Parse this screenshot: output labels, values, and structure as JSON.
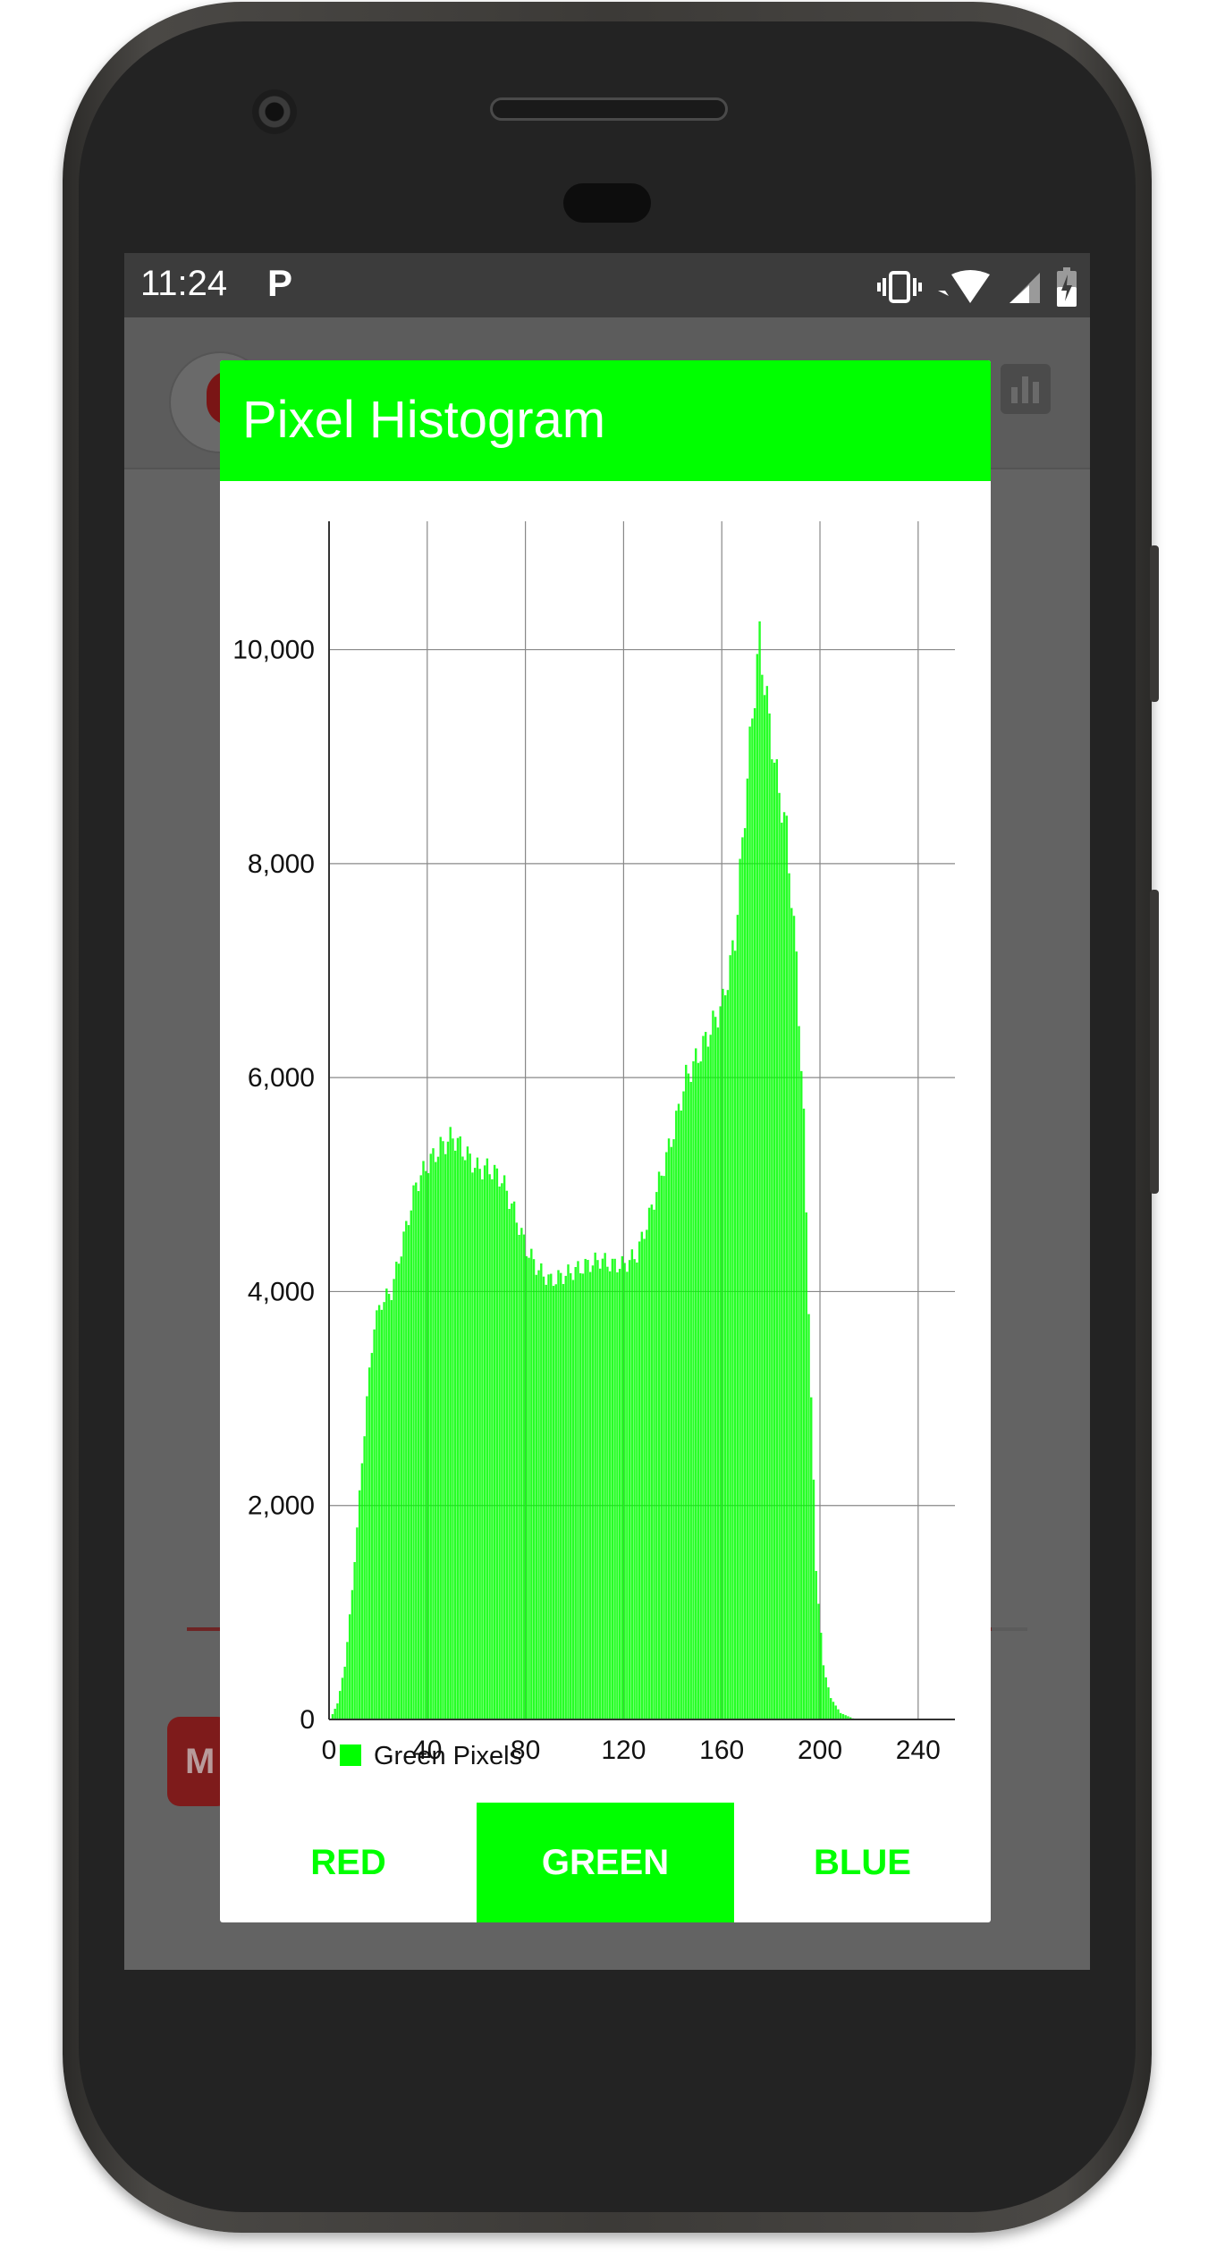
{
  "status_bar": {
    "time": "11:24",
    "app_letter": "P"
  },
  "dialog": {
    "title": "Pixel Histogram",
    "accent_color": "#00ff00",
    "tabs": [
      {
        "label": "RED",
        "selected": false
      },
      {
        "label": "GREEN",
        "selected": true
      },
      {
        "label": "BLUE",
        "selected": false
      }
    ]
  },
  "background": {
    "button_letter": "M"
  },
  "chart_data": {
    "type": "bar",
    "xlim": [
      0,
      255
    ],
    "ylim": [
      0,
      11200
    ],
    "x_ticks": [
      0,
      40,
      80,
      120,
      160,
      200,
      240
    ],
    "y_ticks": [
      0,
      2000,
      4000,
      6000,
      8000,
      10000
    ],
    "y_tick_labels": [
      "0",
      "2,000",
      "4,000",
      "6,000",
      "8,000",
      "10,000"
    ],
    "grid": true,
    "legend_position": "bottom-left",
    "series": [
      {
        "name": "Green Pixels",
        "color": "#00ff00",
        "anchors": [
          [
            0,
            0
          ],
          [
            3,
            150
          ],
          [
            6,
            500
          ],
          [
            9,
            1200
          ],
          [
            12,
            2100
          ],
          [
            15,
            3000
          ],
          [
            18,
            3700
          ],
          [
            21,
            3900
          ],
          [
            25,
            4000
          ],
          [
            30,
            4500
          ],
          [
            35,
            5000
          ],
          [
            40,
            5200
          ],
          [
            45,
            5350
          ],
          [
            50,
            5450
          ],
          [
            55,
            5300
          ],
          [
            60,
            5150
          ],
          [
            65,
            5150
          ],
          [
            70,
            5050
          ],
          [
            75,
            4750
          ],
          [
            80,
            4400
          ],
          [
            85,
            4200
          ],
          [
            90,
            4100
          ],
          [
            95,
            4150
          ],
          [
            100,
            4200
          ],
          [
            105,
            4250
          ],
          [
            110,
            4300
          ],
          [
            115,
            4250
          ],
          [
            120,
            4250
          ],
          [
            125,
            4350
          ],
          [
            130,
            4700
          ],
          [
            135,
            5100
          ],
          [
            140,
            5500
          ],
          [
            145,
            6000
          ],
          [
            150,
            6200
          ],
          [
            155,
            6450
          ],
          [
            160,
            6700
          ],
          [
            165,
            7300
          ],
          [
            168,
            8200
          ],
          [
            172,
            9400
          ],
          [
            175,
            10100
          ],
          [
            178,
            9500
          ],
          [
            182,
            8800
          ],
          [
            186,
            8300
          ],
          [
            190,
            7100
          ],
          [
            193,
            5600
          ],
          [
            196,
            3000
          ],
          [
            198,
            1400
          ],
          [
            201,
            500
          ],
          [
            204,
            200
          ],
          [
            208,
            60
          ],
          [
            213,
            10
          ],
          [
            216,
            0
          ],
          [
            255,
            0
          ]
        ]
      }
    ]
  }
}
